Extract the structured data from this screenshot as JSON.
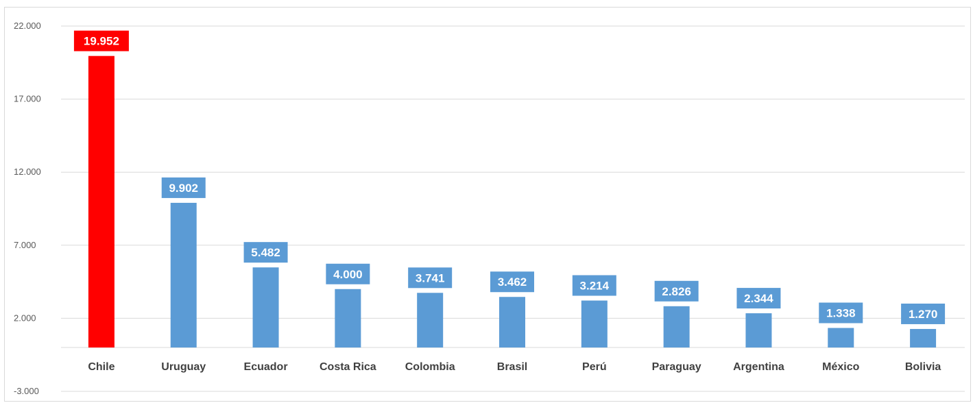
{
  "chart_data": {
    "type": "bar",
    "title": "",
    "xlabel": "",
    "ylabel": "",
    "categories": [
      "Chile",
      "Uruguay",
      "Ecuador",
      "Costa Rica",
      "Colombia",
      "Brasil",
      "Perú",
      "Paraguay",
      "Argentina",
      "México",
      "Bolivia"
    ],
    "values": [
      19952,
      9902,
      5482,
      4000,
      3741,
      3462,
      3214,
      2826,
      2344,
      1338,
      1270
    ],
    "value_labels": [
      "19.952",
      "9.902",
      "5.482",
      "4.000",
      "3.741",
      "3.462",
      "3.214",
      "2.826",
      "2.344",
      "1.338",
      "1.270"
    ],
    "ylim": [
      -3000,
      22000
    ],
    "yticks": [
      22000,
      17000,
      12000,
      7000,
      2000,
      -3000
    ],
    "ytick_labels": [
      "22.000",
      "17.000",
      "12.000",
      "7.000",
      "2.000",
      "-3.000"
    ],
    "grid": true,
    "legend": "none",
    "colors": {
      "default": "#5b9bd5",
      "highlight": "#ff0000",
      "highlight_category": "Chile"
    }
  }
}
